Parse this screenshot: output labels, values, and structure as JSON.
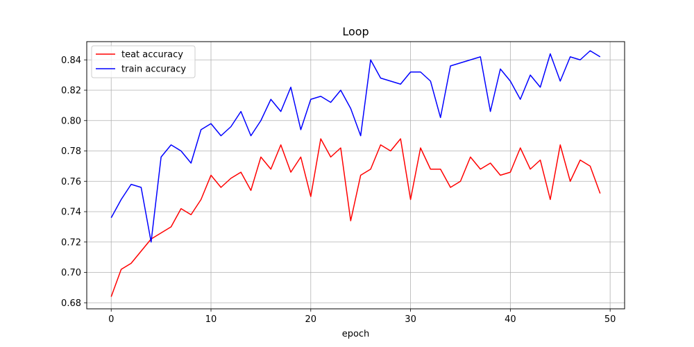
{
  "chart_data": {
    "type": "line",
    "title": "Loop",
    "xlabel": "epoch",
    "ylabel": "",
    "xlim": [
      -2.45,
      51.45
    ],
    "ylim": [
      0.676,
      0.852
    ],
    "xticks": [
      0,
      10,
      20,
      30,
      40,
      50
    ],
    "yticks": [
      0.68,
      0.7,
      0.72,
      0.74,
      0.76,
      0.78,
      0.8,
      0.82,
      0.84
    ],
    "grid": true,
    "legend_position": "upper-left",
    "x": [
      0,
      1,
      2,
      3,
      4,
      5,
      6,
      7,
      8,
      9,
      10,
      11,
      12,
      13,
      14,
      15,
      16,
      17,
      18,
      19,
      20,
      21,
      22,
      23,
      24,
      25,
      26,
      27,
      28,
      29,
      30,
      31,
      32,
      33,
      34,
      35,
      36,
      37,
      38,
      39,
      40,
      41,
      42,
      43,
      44,
      45,
      46,
      47,
      48,
      49
    ],
    "series": [
      {
        "name": "teat accuracy",
        "color": "#ff0000",
        "values": [
          0.684,
          0.702,
          0.706,
          0.714,
          0.722,
          0.726,
          0.73,
          0.742,
          0.738,
          0.748,
          0.764,
          0.756,
          0.762,
          0.766,
          0.754,
          0.776,
          0.768,
          0.784,
          0.766,
          0.776,
          0.75,
          0.788,
          0.776,
          0.782,
          0.734,
          0.764,
          0.768,
          0.784,
          0.78,
          0.788,
          0.748,
          0.782,
          0.768,
          0.768,
          0.756,
          0.76,
          0.776,
          0.768,
          0.772,
          0.764,
          0.766,
          0.782,
          0.768,
          0.774,
          0.748,
          0.784,
          0.76,
          0.774,
          0.77,
          0.752
        ]
      },
      {
        "name": "train accuracy",
        "color": "#0000ff",
        "values": [
          0.736,
          0.748,
          0.758,
          0.756,
          0.72,
          0.776,
          0.784,
          0.78,
          0.772,
          0.794,
          0.798,
          0.79,
          0.796,
          0.806,
          0.79,
          0.8,
          0.814,
          0.806,
          0.822,
          0.794,
          0.814,
          0.816,
          0.812,
          0.82,
          0.808,
          0.79,
          0.84,
          0.828,
          0.826,
          0.824,
          0.832,
          0.832,
          0.826,
          0.802,
          0.836,
          0.838,
          0.84,
          0.842,
          0.806,
          0.834,
          0.826,
          0.814,
          0.83,
          0.822,
          0.844,
          0.826,
          0.842,
          0.84,
          0.846,
          0.842
        ]
      }
    ]
  }
}
